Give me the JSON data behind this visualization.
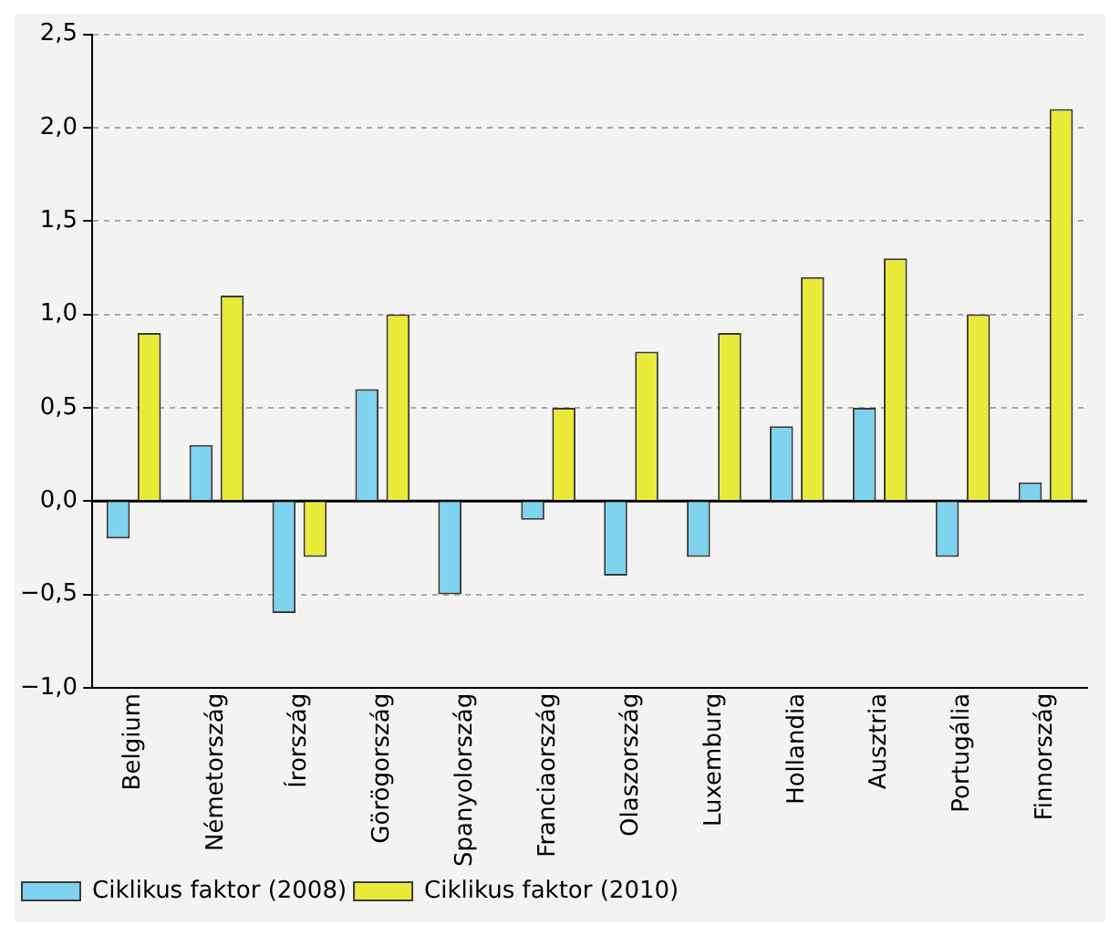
{
  "chart_data": {
    "type": "bar",
    "categories": [
      "Belgium",
      "Németország",
      "Írország",
      "Görögország",
      "Spanyolország",
      "Franciaország",
      "Olaszország",
      "Luxemburg",
      "Hollandia",
      "Ausztria",
      "Portugália",
      "Finnország"
    ],
    "series": [
      {
        "name": "Ciklikus faktor (2008)",
        "color": "#7fd3ee",
        "values": [
          -0.2,
          0.3,
          -0.6,
          0.6,
          -0.5,
          -0.1,
          -0.4,
          -0.3,
          0.4,
          0.5,
          -0.3,
          0.1
        ]
      },
      {
        "name": "Ciklikus faktor (2010)",
        "color": "#eaea3a",
        "values": [
          0.9,
          1.1,
          -0.3,
          1.0,
          null,
          0.5,
          0.8,
          0.9,
          1.2,
          1.3,
          1.0,
          2.1
        ]
      }
    ],
    "ylim": [
      -1.0,
      2.5
    ],
    "yticks": [
      {
        "value": -1.0,
        "label": "−1,0"
      },
      {
        "value": -0.5,
        "label": "−0,5"
      },
      {
        "value": 0,
        "label": "0,0"
      },
      {
        "value": 0.5,
        "label": "0,5"
      },
      {
        "value": 1.0,
        "label": "1,0"
      },
      {
        "value": 1.5,
        "label": "1,5"
      },
      {
        "value": 2.0,
        "label": "2,0"
      },
      {
        "value": 2.5,
        "label": "2,5"
      }
    ],
    "ref_lines": [
      {
        "axis": "y",
        "value": 0,
        "color": "#000000"
      }
    ],
    "grid": "y",
    "legend": "bottom left"
  }
}
